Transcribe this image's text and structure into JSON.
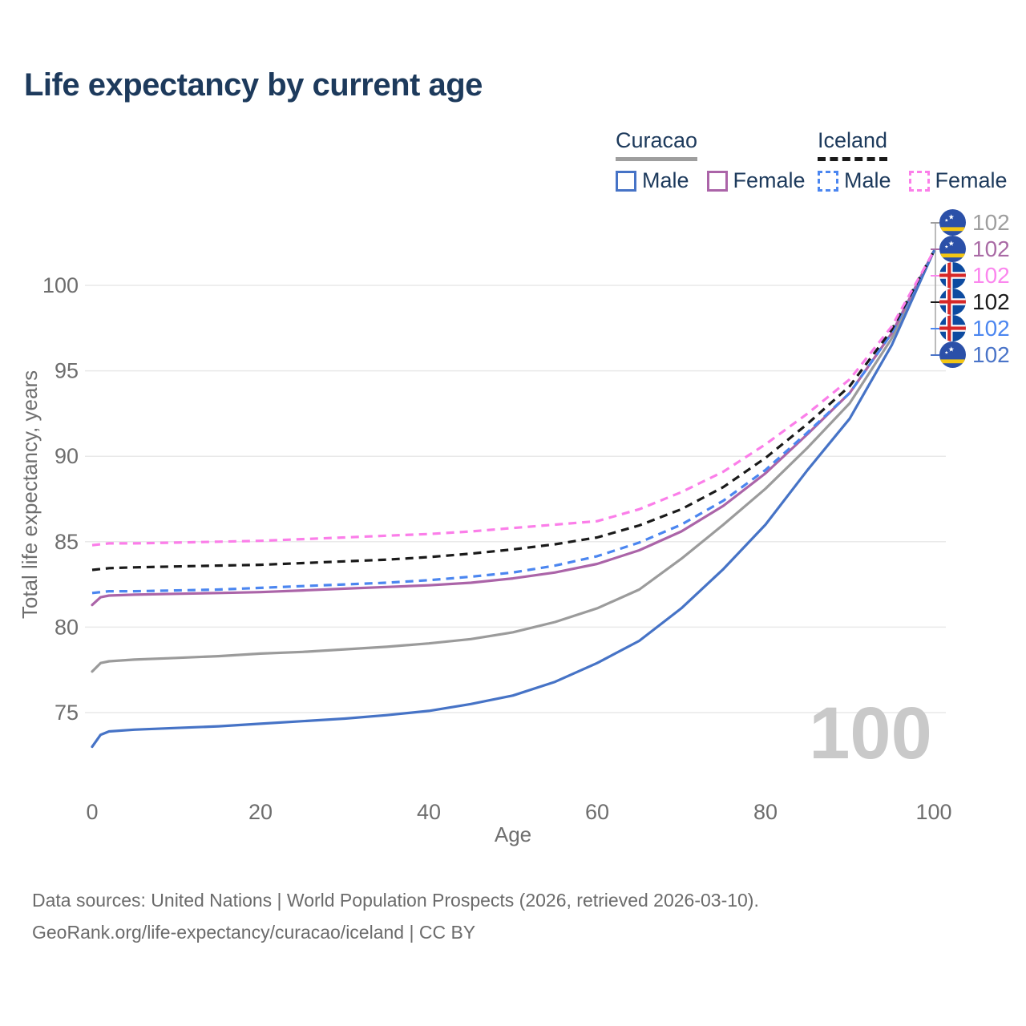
{
  "title": "Life expectancy by current age",
  "legend": {
    "groups": [
      {
        "country": "Curacao",
        "underline_style": "solid",
        "underline_color": "#9e9e9e",
        "items": [
          {
            "label": "Male",
            "color": "#4673c6",
            "line_style": "solid"
          },
          {
            "label": "Female",
            "color": "#ab64a8",
            "line_style": "solid"
          }
        ]
      },
      {
        "country": "Iceland",
        "underline_style": "dashed",
        "underline_color": "#1a1a1a",
        "items": [
          {
            "label": "Male",
            "color": "#4b86f0",
            "line_style": "dashed"
          },
          {
            "label": "Female",
            "color": "#fb7ee9",
            "line_style": "dashed"
          }
        ]
      }
    ]
  },
  "endpoint_labels": [
    {
      "flag": "curacao",
      "series": "Curacao both sexes",
      "value": "102",
      "color": "#9e9e9e"
    },
    {
      "flag": "curacao",
      "series": "Curacao Female",
      "value": "102",
      "color": "#a96aa5"
    },
    {
      "flag": "iceland",
      "series": "Iceland Female",
      "value": "102",
      "color": "#fb86ee"
    },
    {
      "flag": "iceland",
      "series": "Iceland both sexes",
      "value": "102",
      "color": "#1a1a1a"
    },
    {
      "flag": "iceland",
      "series": "Iceland Male",
      "value": "102",
      "color": "#4b86f0"
    },
    {
      "flag": "curacao",
      "series": "Curacao Male",
      "value": "102",
      "color": "#4a74c8"
    }
  ],
  "watermark": "100",
  "footer": {
    "line1": "Data sources: United Nations | World Population Prospects (2026, retrieved 2026-03-10).",
    "line2": "GeoRank.org/life-expectancy/curacao/iceland | CC BY"
  },
  "theme": {
    "background": "#ffffff",
    "title_color": "#1d3a5c",
    "grid_color": "#e9e9e9",
    "axis_text_color": "#6e6e6e",
    "watermark_color": "#c9c9c9",
    "bracket_color": "#9e9e9e"
  },
  "chart_data": {
    "type": "line",
    "title": "Life expectancy by current age",
    "xlabel": "Age",
    "ylabel": "Total life expectancy, years",
    "xlim": [
      0,
      100
    ],
    "ylim": [
      72.5,
      103
    ],
    "xticks": [
      0,
      20,
      40,
      60,
      80,
      100
    ],
    "yticks": [
      75,
      80,
      85,
      90,
      95,
      100
    ],
    "grid": "horizontal-only",
    "legend_position": "top-right",
    "x": [
      0,
      1,
      2,
      5,
      10,
      15,
      20,
      25,
      30,
      35,
      40,
      45,
      50,
      55,
      60,
      65,
      70,
      75,
      80,
      85,
      90,
      95,
      100
    ],
    "series": [
      {
        "name": "Curacao both sexes",
        "country": "Curacao",
        "sex": "Both",
        "color": "#9b9b9b",
        "line_style": "solid",
        "values": [
          77.4,
          77.9,
          78.0,
          78.1,
          78.2,
          78.3,
          78.45,
          78.55,
          78.7,
          78.85,
          79.05,
          79.3,
          79.7,
          80.3,
          81.1,
          82.2,
          84.0,
          86.0,
          88.1,
          90.5,
          93.1,
          96.9,
          102
        ]
      },
      {
        "name": "Curacao Female",
        "country": "Curacao",
        "sex": "Female",
        "color": "#ab64a8",
        "line_style": "solid",
        "values": [
          81.3,
          81.75,
          81.85,
          81.9,
          81.95,
          82.0,
          82.05,
          82.15,
          82.25,
          82.35,
          82.45,
          82.6,
          82.85,
          83.2,
          83.7,
          84.5,
          85.6,
          87.1,
          89.0,
          91.3,
          93.7,
          97.2,
          102
        ]
      },
      {
        "name": "Curacao Male",
        "country": "Curacao",
        "sex": "Male",
        "color": "#4673c6",
        "line_style": "solid",
        "values": [
          73.0,
          73.7,
          73.9,
          74.0,
          74.1,
          74.2,
          74.35,
          74.5,
          74.65,
          74.85,
          75.1,
          75.5,
          76.0,
          76.8,
          77.9,
          79.2,
          81.1,
          83.4,
          86.0,
          89.2,
          92.2,
          96.5,
          102
        ]
      },
      {
        "name": "Iceland Male",
        "country": "Iceland",
        "sex": "Male",
        "color": "#4b86f0",
        "line_style": "dashed",
        "values": [
          82.0,
          82.05,
          82.1,
          82.1,
          82.15,
          82.2,
          82.3,
          82.4,
          82.5,
          82.6,
          82.75,
          82.95,
          83.2,
          83.6,
          84.15,
          84.95,
          86.0,
          87.4,
          89.2,
          91.4,
          93.7,
          97.2,
          102
        ]
      },
      {
        "name": "Iceland both sexes",
        "country": "Iceland",
        "sex": "Both",
        "color": "#1a1a1a",
        "line_style": "dashed",
        "values": [
          83.35,
          83.4,
          83.45,
          83.5,
          83.55,
          83.6,
          83.65,
          83.75,
          83.85,
          83.95,
          84.1,
          84.3,
          84.55,
          84.85,
          85.25,
          85.95,
          86.9,
          88.2,
          89.9,
          91.9,
          94.1,
          97.4,
          102
        ]
      },
      {
        "name": "Iceland Female",
        "country": "Iceland",
        "sex": "Female",
        "color": "#fb7ee9",
        "line_style": "dashed",
        "values": [
          84.8,
          84.85,
          84.9,
          84.9,
          84.95,
          85.0,
          85.05,
          85.15,
          85.25,
          85.35,
          85.45,
          85.6,
          85.8,
          86.0,
          86.2,
          86.9,
          87.9,
          89.1,
          90.7,
          92.5,
          94.5,
          97.6,
          102
        ]
      }
    ]
  }
}
